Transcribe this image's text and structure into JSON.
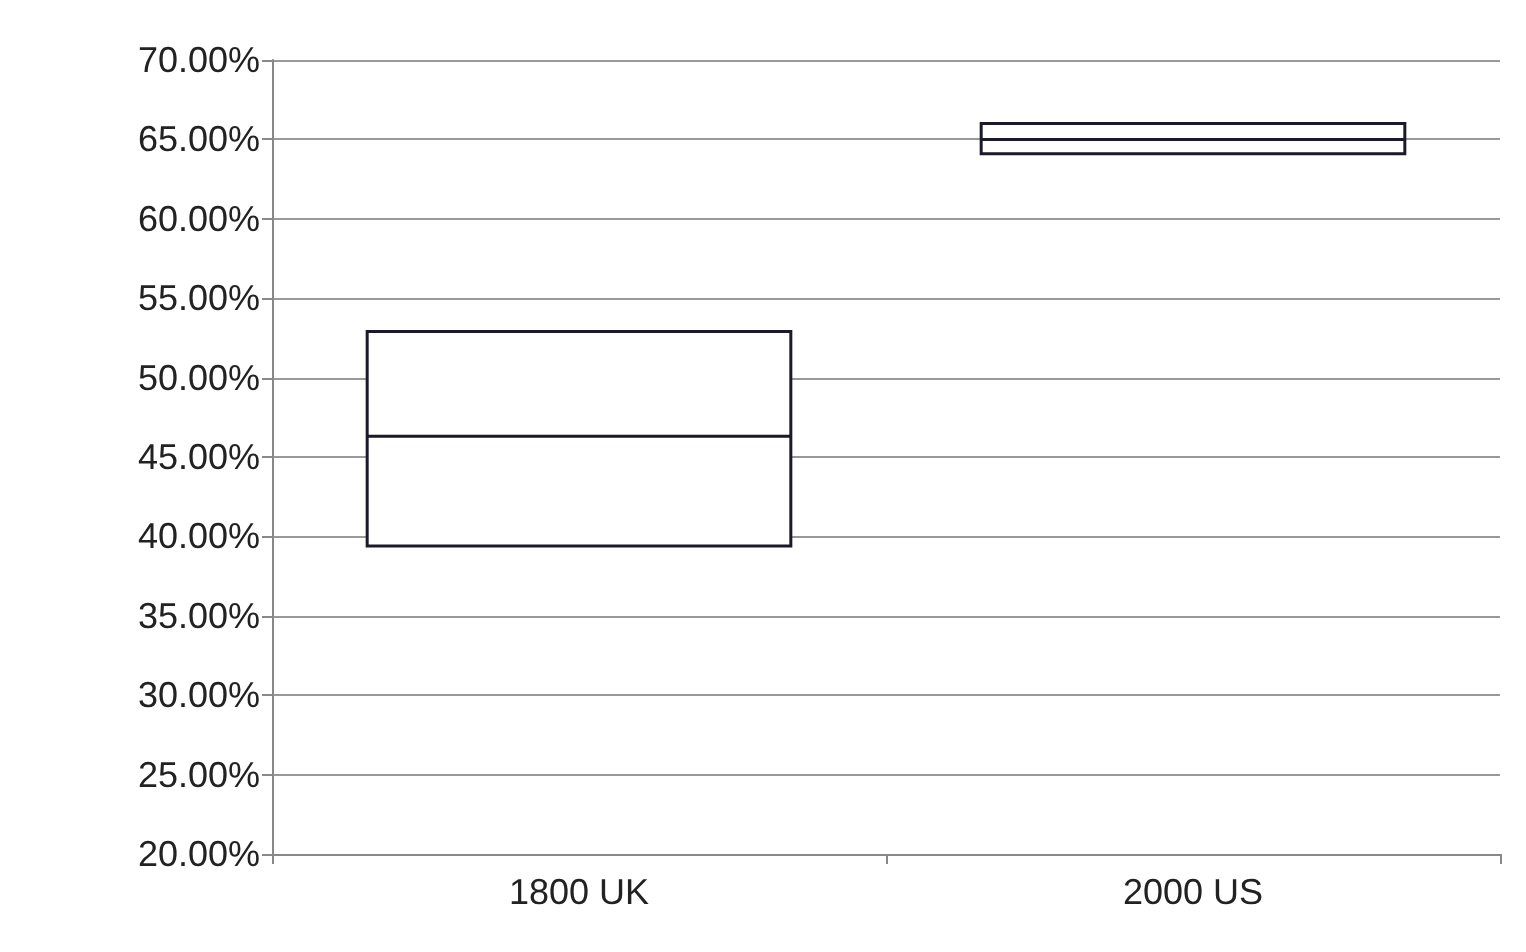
{
  "chart_data": {
    "type": "box",
    "categories": [
      "1800 UK",
      "2000 US"
    ],
    "color": "#ffffff",
    "boxes": [
      {
        "low": 39.4,
        "q1": 39.4,
        "median": 46.3,
        "q3": 52.9,
        "high": 52.9
      },
      {
        "low": 64.1,
        "q1": 64.1,
        "median": 65.0,
        "q3": 66.0,
        "high": 66.0
      }
    ],
    "ylim": [
      20,
      70
    ],
    "yticks": [
      {
        "value": 20,
        "label": "20.00%"
      },
      {
        "value": 25,
        "label": "25.00%"
      },
      {
        "value": 30,
        "label": "30.00%"
      },
      {
        "value": 35,
        "label": "35.00%"
      },
      {
        "value": 40,
        "label": "40.00%"
      },
      {
        "value": 45,
        "label": "45.00%"
      },
      {
        "value": 50,
        "label": "50.00%"
      },
      {
        "value": 55,
        "label": "55.00%"
      },
      {
        "value": 60,
        "label": "60.00%"
      },
      {
        "value": 65,
        "label": "65.00%"
      },
      {
        "value": 70,
        "label": "70.00%"
      }
    ],
    "grid": "y"
  }
}
